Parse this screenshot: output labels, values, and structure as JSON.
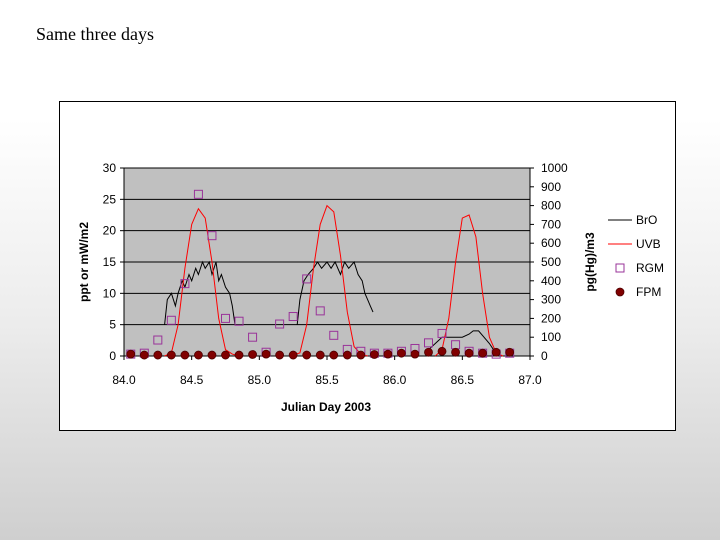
{
  "slide": {
    "title": "Same three days"
  },
  "chart_data": {
    "type": "line",
    "title": "",
    "xlabel": "Julian Day 2003",
    "ylabel": "ppt or mW/m2",
    "y2label": "pg(Hg)/m3",
    "xlim": [
      84.0,
      87.0
    ],
    "ylim": [
      0,
      30
    ],
    "y2lim": [
      0,
      1000
    ],
    "x_ticks": [
      "84.0",
      "84.5",
      "85.0",
      "85.5",
      "86.0",
      "86.5",
      "87.0"
    ],
    "y_ticks": [
      "0",
      "5",
      "10",
      "15",
      "20",
      "25",
      "30"
    ],
    "y2_ticks": [
      "0",
      "100",
      "200",
      "300",
      "400",
      "500",
      "600",
      "700",
      "800",
      "900",
      "1000"
    ],
    "grid": true,
    "legend_position": "right",
    "colors": {
      "BrO": "#000000",
      "UVB": "#ff0000",
      "RGM": "#993399",
      "FPM": "#800000",
      "plot_bg": "#c0c0c0"
    },
    "series": [
      {
        "name": "BrO",
        "axis": "left",
        "style": "line",
        "segments": [
          {
            "x": [
              84.3,
              84.32,
              84.35,
              84.38,
              84.4,
              84.43,
              84.45,
              84.48,
              84.5,
              84.53,
              84.55,
              84.58,
              84.6,
              84.63,
              84.65,
              84.68,
              84.7,
              84.72,
              84.75,
              84.78,
              84.8,
              84.82
            ],
            "y": [
              5,
              9,
              10,
              8,
              10,
              12,
              11,
              13,
              12,
              14,
              13,
              15,
              14,
              15,
              13,
              15,
              12,
              13,
              11,
              10,
              8,
              5
            ]
          },
          {
            "x": [
              85.28,
              85.3,
              85.33,
              85.36,
              85.4,
              85.43,
              85.46,
              85.5,
              85.53,
              85.56,
              85.6,
              85.63,
              85.66,
              85.7,
              85.73,
              85.76,
              85.78,
              85.8,
              85.82,
              85.84
            ],
            "y": [
              5,
              9,
              12,
              13,
              14,
              15,
              14,
              15,
              14,
              15,
              13,
              15,
              14,
              15,
              13,
              12,
              10,
              9,
              8,
              7
            ]
          },
          {
            "x": [
              86.25,
              86.3,
              86.35,
              86.4,
              86.45,
              86.5,
              86.55,
              86.58,
              86.62,
              86.66,
              86.7,
              86.73
            ],
            "y": [
              1,
              2,
              3,
              3,
              3,
              3,
              3.5,
              4,
              4,
              3,
              2,
              1
            ]
          }
        ]
      },
      {
        "name": "UVB",
        "axis": "left",
        "style": "line",
        "segments": [
          {
            "x": [
              84.3,
              84.35,
              84.4,
              84.45,
              84.5,
              84.55,
              84.6,
              84.65,
              84.7,
              84.75,
              84.8,
              84.85
            ],
            "y": [
              0,
              0.5,
              5,
              14,
              21,
              23.5,
              22,
              15,
              6,
              1,
              0.3,
              0
            ]
          },
          {
            "x": [
              85.23,
              85.3,
              85.35,
              85.4,
              85.45,
              85.5,
              85.55,
              85.6,
              85.65,
              85.7,
              85.75,
              85.8
            ],
            "y": [
              0,
              0.5,
              5,
              14,
              21,
              24,
              23,
              16,
              7,
              1.5,
              0.3,
              0
            ]
          },
          {
            "x": [
              86.3,
              86.35,
              86.4,
              86.45,
              86.5,
              86.55,
              86.6,
              86.65,
              86.7,
              86.75,
              86.8
            ],
            "y": [
              0,
              1,
              6,
              15,
              22,
              22.5,
              19,
              10,
              3,
              0.5,
              0
            ]
          }
        ]
      },
      {
        "name": "RGM",
        "axis": "right",
        "style": "marker",
        "x": [
          84.05,
          84.15,
          84.25,
          84.35,
          84.45,
          84.55,
          84.65,
          84.75,
          84.85,
          84.95,
          85.05,
          85.15,
          85.25,
          85.35,
          85.45,
          85.55,
          85.65,
          85.75,
          85.85,
          85.95,
          86.05,
          86.15,
          86.25,
          86.35,
          86.45,
          86.55,
          86.65,
          86.75,
          86.85
        ],
        "y": [
          10,
          15,
          85,
          190,
          385,
          860,
          640,
          200,
          185,
          100,
          20,
          170,
          210,
          410,
          240,
          110,
          35,
          25,
          15,
          15,
          25,
          40,
          70,
          120,
          60,
          25,
          15,
          10,
          15
        ]
      },
      {
        "name": "FPM",
        "axis": "right",
        "style": "marker",
        "x": [
          84.05,
          84.15,
          84.25,
          84.35,
          84.45,
          84.55,
          84.65,
          84.75,
          84.85,
          84.95,
          85.05,
          85.15,
          85.25,
          85.35,
          85.45,
          85.55,
          85.65,
          85.75,
          85.85,
          85.95,
          86.05,
          86.15,
          86.25,
          86.35,
          86.45,
          86.55,
          86.65,
          86.75,
          86.85
        ],
        "y": [
          10,
          5,
          5,
          5,
          5,
          5,
          5,
          5,
          5,
          8,
          10,
          5,
          5,
          5,
          5,
          5,
          5,
          5,
          8,
          10,
          15,
          10,
          20,
          25,
          20,
          15,
          15,
          20,
          20
        ]
      }
    ]
  }
}
